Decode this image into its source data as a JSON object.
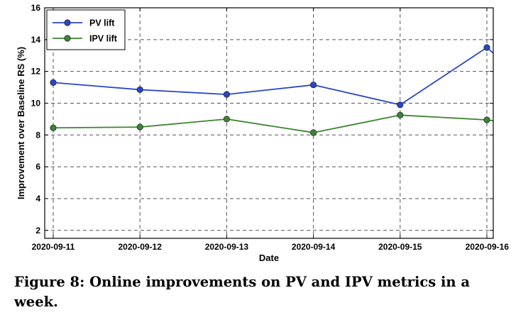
{
  "caption": "Figure 8: Online improvements on PV and IPV metrics in a week.",
  "chart_data": {
    "type": "line",
    "title": "",
    "xlabel": "Date",
    "ylabel": "Improvement over Baseline RS (%)",
    "categories": [
      "2020-09-11",
      "2020-09-12",
      "2020-09-13",
      "2020-09-14",
      "2020-09-15",
      "2020-09-16"
    ],
    "ylim": [
      1.5,
      16
    ],
    "yticks": [
      2,
      4,
      6,
      8,
      10,
      12,
      14,
      16
    ],
    "grid": true,
    "legend_position": "top-left",
    "series": [
      {
        "name": "PV lift",
        "color": "#2b45c6",
        "values": [
          11.3,
          10.85,
          10.55,
          11.15,
          9.9,
          13.5
        ],
        "tail_value": 13.15
      },
      {
        "name": "IPV lift",
        "color": "#3d8530",
        "values": [
          8.45,
          8.5,
          9.0,
          8.15,
          9.25,
          8.95
        ],
        "tail_value": 8.9
      }
    ]
  }
}
